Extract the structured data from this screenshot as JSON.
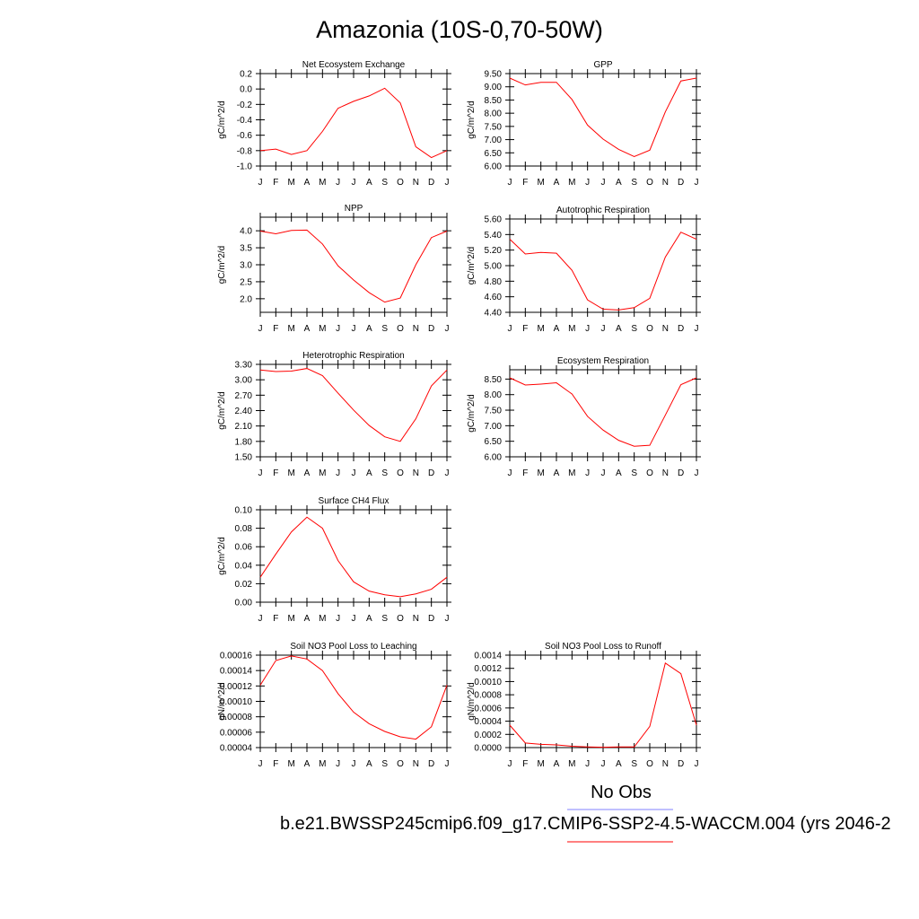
{
  "title": "Amazonia (10S-0,70-50W)",
  "legend": {
    "obs_label": "No Obs",
    "obs_color": "#8080ff",
    "run_label": "b.e21.BWSSP245cmip6.f09_g17.CMIP6-SSP2-4.5-WACCM.004 (yrs 2046-2",
    "run_color": "#ff0000"
  },
  "chart_data": [
    {
      "type": "line",
      "title": "Net Ecosystem Exchange",
      "ylabel": "gC/m^2/d",
      "ylim": [
        -1.0,
        0.2
      ],
      "yticks": [
        "0.2",
        "0.0",
        "-0.2",
        "-0.4",
        "-0.6",
        "-0.8",
        "-1.0"
      ],
      "categories": [
        "J",
        "F",
        "M",
        "A",
        "M",
        "J",
        "J",
        "A",
        "S",
        "O",
        "N",
        "D",
        "J"
      ],
      "values": [
        -0.8,
        -0.78,
        -0.85,
        -0.8,
        -0.55,
        -0.25,
        -0.16,
        -0.09,
        0.01,
        -0.18,
        -0.75,
        -0.89,
        -0.8
      ]
    },
    {
      "type": "line",
      "title": "GPP",
      "ylabel": "gC/m^2/d",
      "ylim": [
        6.0,
        9.5
      ],
      "yticks": [
        "9.50",
        "9.00",
        "8.50",
        "8.00",
        "7.50",
        "7.00",
        "6.50",
        "6.00"
      ],
      "categories": [
        "J",
        "F",
        "M",
        "A",
        "M",
        "J",
        "J",
        "A",
        "S",
        "O",
        "N",
        "D",
        "J"
      ],
      "values": [
        9.33,
        9.07,
        9.17,
        9.17,
        8.52,
        7.55,
        7.02,
        6.63,
        6.36,
        6.6,
        8.05,
        9.22,
        9.33
      ]
    },
    {
      "type": "line",
      "title": "NPP",
      "ylabel": "gC/m^2/d",
      "ylim": [
        1.6,
        4.4
      ],
      "yticks": [
        "4.0",
        "3.5",
        "3.0",
        "2.5",
        "2.0"
      ],
      "categories": [
        "J",
        "F",
        "M",
        "A",
        "M",
        "J",
        "J",
        "A",
        "S",
        "O",
        "N",
        "D",
        "J"
      ],
      "values": [
        3.99,
        3.91,
        4.01,
        4.02,
        3.61,
        2.97,
        2.55,
        2.18,
        1.9,
        2.02,
        3.0,
        3.8,
        3.99
      ]
    },
    {
      "type": "line",
      "title": "Autotrophic Respiration",
      "ylabel": "gC/m^2/d",
      "ylim": [
        4.4,
        5.6
      ],
      "yticks": [
        "5.60",
        "5.40",
        "5.20",
        "5.00",
        "4.80",
        "4.60",
        "4.40"
      ],
      "categories": [
        "J",
        "F",
        "M",
        "A",
        "M",
        "J",
        "J",
        "A",
        "S",
        "O",
        "N",
        "D",
        "J"
      ],
      "values": [
        5.34,
        5.15,
        5.17,
        5.16,
        4.94,
        4.56,
        4.44,
        4.43,
        4.46,
        4.58,
        5.11,
        5.43,
        5.34
      ]
    },
    {
      "type": "line",
      "title": "Heterotrophic Respiration",
      "ylabel": "gC/m^2/d",
      "ylim": [
        1.5,
        3.3
      ],
      "yticks": [
        "3.30",
        "3.00",
        "2.70",
        "2.40",
        "2.10",
        "1.80",
        "1.50"
      ],
      "categories": [
        "J",
        "F",
        "M",
        "A",
        "M",
        "J",
        "J",
        "A",
        "S",
        "O",
        "N",
        "D",
        "J"
      ],
      "values": [
        3.19,
        3.16,
        3.17,
        3.22,
        3.08,
        2.74,
        2.41,
        2.11,
        1.89,
        1.8,
        2.24,
        2.88,
        3.19
      ]
    },
    {
      "type": "line",
      "title": "Ecosystem Respiration",
      "ylabel": "gC/m^2/d",
      "ylim": [
        6.0,
        8.8
      ],
      "yticks": [
        "8.50",
        "8.00",
        "7.50",
        "7.00",
        "6.50",
        "6.00"
      ],
      "categories": [
        "J",
        "F",
        "M",
        "A",
        "M",
        "J",
        "J",
        "A",
        "S",
        "O",
        "N",
        "D",
        "J"
      ],
      "values": [
        8.54,
        8.31,
        8.34,
        8.38,
        8.02,
        7.3,
        6.86,
        6.53,
        6.34,
        6.37,
        7.34,
        8.32,
        8.54
      ]
    },
    {
      "type": "line",
      "title": "Surface CH4 Flux",
      "ylabel": "gC/m^2/d",
      "ylim": [
        0.0,
        0.1
      ],
      "yticks": [
        "0.10",
        "0.08",
        "0.06",
        "0.04",
        "0.02",
        "0.00"
      ],
      "categories": [
        "J",
        "F",
        "M",
        "A",
        "M",
        "J",
        "J",
        "A",
        "S",
        "O",
        "N",
        "D",
        "J"
      ],
      "values": [
        0.027,
        0.052,
        0.076,
        0.092,
        0.08,
        0.045,
        0.022,
        0.012,
        0.008,
        0.006,
        0.009,
        0.014,
        0.027
      ]
    },
    {
      "type": "line",
      "title": "Soil NO3 Pool Loss to Leaching",
      "ylabel": "gN/m^2/d",
      "ylim": [
        4e-05,
        0.00016
      ],
      "yticks": [
        "0.00016",
        "0.00014",
        "0.00012",
        "0.00010",
        "0.00008",
        "0.00006",
        "0.00004"
      ],
      "categories": [
        "J",
        "F",
        "M",
        "A",
        "M",
        "J",
        "J",
        "A",
        "S",
        "O",
        "N",
        "D",
        "J"
      ],
      "values": [
        0.000121,
        0.000153,
        0.000159,
        0.000155,
        0.00014,
        0.00011,
        8.6e-05,
        7.1e-05,
        6.1e-05,
        5.4e-05,
        5.1e-05,
        6.7e-05,
        0.000121
      ]
    },
    {
      "type": "line",
      "title": "Soil NO3 Pool Loss to Runoff",
      "ylabel": "gN/m^2/d",
      "ylim": [
        0.0,
        0.0014
      ],
      "yticks": [
        "0.0014",
        "0.0012",
        "0.0010",
        "0.0008",
        "0.0006",
        "0.0004",
        "0.0002",
        "0.0000"
      ],
      "categories": [
        "J",
        "F",
        "M",
        "A",
        "M",
        "J",
        "J",
        "A",
        "S",
        "O",
        "N",
        "D",
        "J"
      ],
      "values": [
        0.00034,
        7e-05,
        5e-05,
        4e-05,
        2e-05,
        1e-05,
        5e-06,
        1e-05,
        1e-05,
        0.00032,
        0.00128,
        0.00112,
        0.00034
      ]
    }
  ]
}
